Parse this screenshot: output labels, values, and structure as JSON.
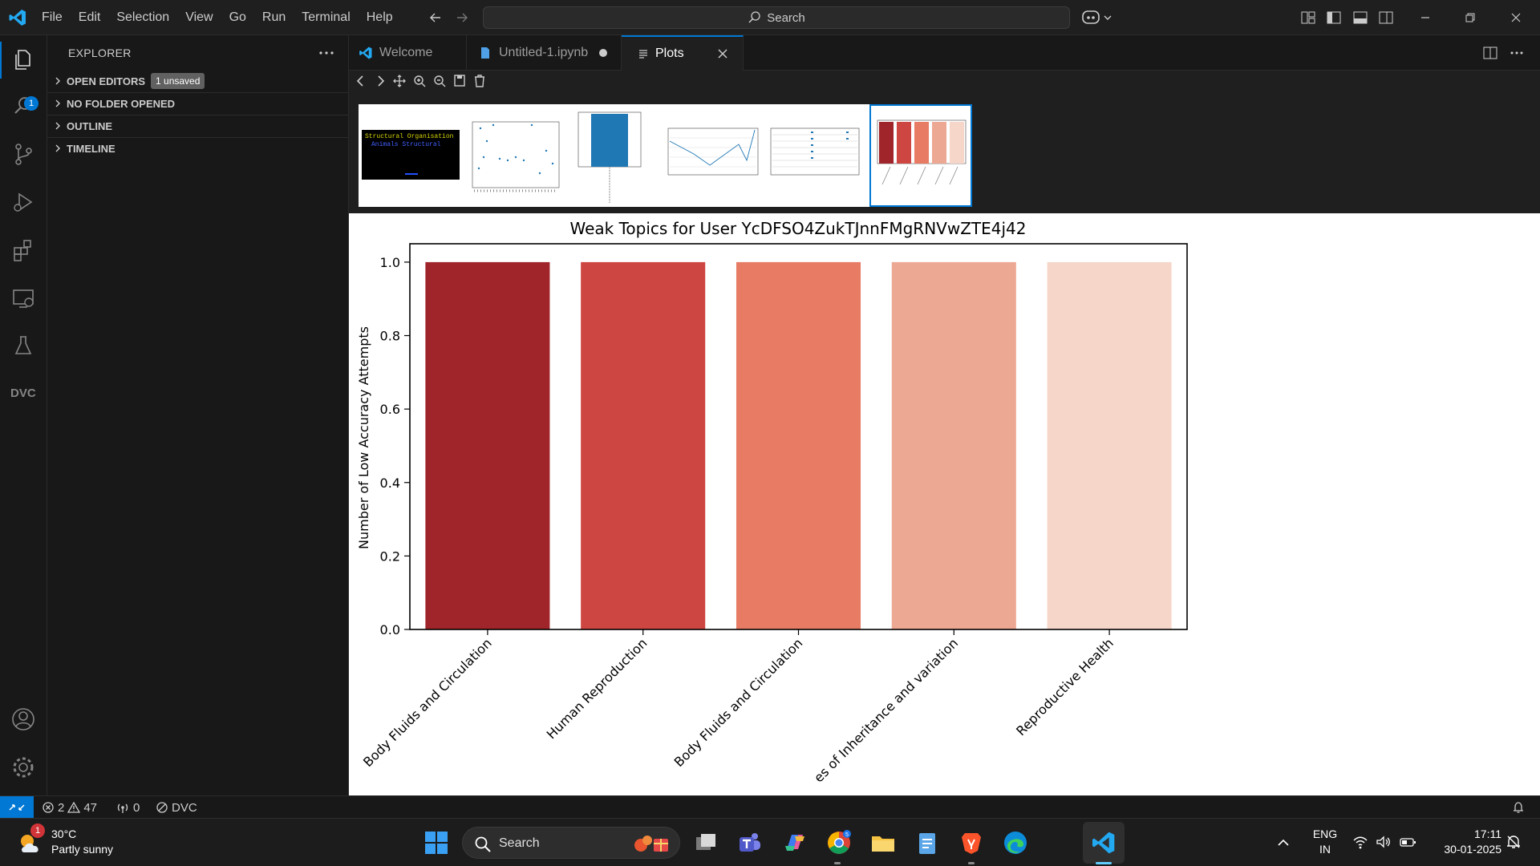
{
  "titlebar": {
    "menu": [
      "File",
      "Edit",
      "Selection",
      "View",
      "Go",
      "Run",
      "Terminal",
      "Help"
    ],
    "search": "Search"
  },
  "activity": {
    "explorer_badge": "1"
  },
  "sidebar": {
    "title": "EXPLORER",
    "sections": [
      {
        "label": "OPEN EDITORS",
        "badge": "1 unsaved"
      },
      {
        "label": "NO FOLDER OPENED"
      },
      {
        "label": "OUTLINE"
      },
      {
        "label": "TIMELINE"
      }
    ]
  },
  "tabs": [
    {
      "label": "Welcome"
    },
    {
      "label": "Untitled-1.ipynb"
    },
    {
      "label": "Plots"
    }
  ],
  "thumbnails": {
    "first_line1": "Structural Organisation",
    "first_line2": "Animals Structural"
  },
  "chart_data": {
    "type": "bar",
    "title": "Weak Topics for User YcDFSO4ZukTJnnFMgRNVwZTE4j42",
    "xlabel": "",
    "ylabel": "Number of Low Accuracy Attempts",
    "categories": [
      "Body Fluids and Circulation",
      "Human Reproduction",
      "Body Fluids and Circulation",
      "es of Inheritance and variation",
      "Reproductive Health"
    ],
    "values": [
      1.0,
      1.0,
      1.0,
      1.0,
      1.0
    ],
    "colors": [
      "#a0252b",
      "#cd4641",
      "#e77b64",
      "#eda893",
      "#f6d6c9"
    ],
    "ylim": [
      0,
      1.05
    ],
    "yticks": [
      "0.0",
      "0.2",
      "0.4",
      "0.6",
      "0.8",
      "1.0"
    ],
    "grid": false,
    "legend": "none"
  },
  "statusbar": {
    "errors": "2",
    "warnings": "47",
    "ports": "0",
    "dvc": "DVC"
  },
  "taskbar": {
    "weather_temp": "30°C",
    "weather_cond": "Partly sunny",
    "weather_badge": "1",
    "search": "Search",
    "lang1": "ENG",
    "lang2": "IN",
    "time": "17:11",
    "date": "30-01-2025"
  }
}
